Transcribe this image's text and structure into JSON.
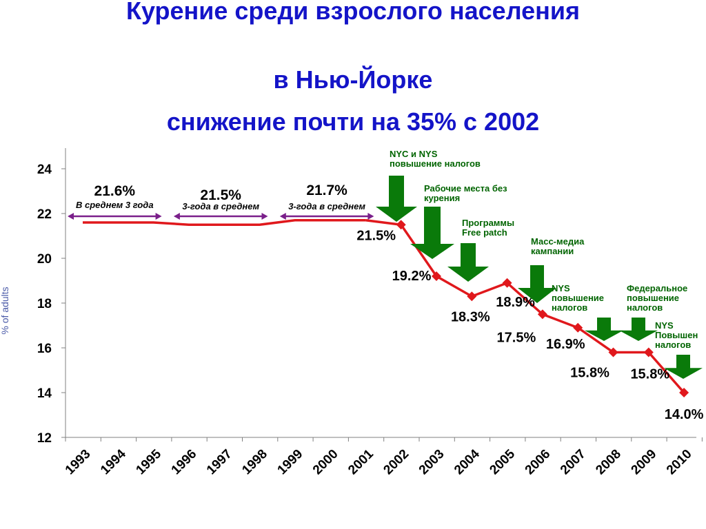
{
  "title_lines": [
    "Курение среди взрослого населения",
    "в Нью-Йорке",
    "снижение почти на 35% с 2002"
  ],
  "colors": {
    "title": "#1414c8",
    "line": "#e0181c",
    "marker": "#e0181c",
    "annotation": "#006400",
    "arrow": "#0a7a0a",
    "average_arrow": "#7a1f8a",
    "axis_label": "#4a5aa8"
  },
  "chart_data": {
    "type": "line",
    "title": "",
    "xlabel": "",
    "ylabel": "% of adults",
    "ylim": [
      12,
      24
    ],
    "y_ticks": [
      12,
      14,
      16,
      18,
      20,
      22,
      24
    ],
    "categories": [
      "1993",
      "1994",
      "1995",
      "1996",
      "1997",
      "1998",
      "1999",
      "2000",
      "2001",
      "2002",
      "2003",
      "2004",
      "2005",
      "2006",
      "2007",
      "2008",
      "2009",
      "2010"
    ],
    "average_line": {
      "x": [
        "1993",
        "1995",
        "1996",
        "1998",
        "1999",
        "2001"
      ],
      "values": [
        21.6,
        21.6,
        21.5,
        21.5,
        21.7,
        21.7
      ]
    },
    "averages": [
      {
        "value_label": "21.6%",
        "period_label": "В среднем 3 года",
        "from": "1993",
        "to": "1995"
      },
      {
        "value_label": "21.5%",
        "period_label": "3-года в среднем",
        "from": "1996",
        "to": "1998"
      },
      {
        "value_label": "21.7%",
        "period_label": "3-года в среднем",
        "from": "1999",
        "to": "2001"
      }
    ],
    "series": [
      {
        "x": [
          "2002",
          "2003",
          "2004",
          "2005",
          "2006",
          "2007",
          "2008",
          "2009",
          "2010"
        ],
        "values": [
          21.5,
          19.2,
          18.3,
          18.9,
          17.5,
          16.9,
          15.8,
          15.8,
          14.0
        ],
        "labels": [
          "21.5%",
          "19.2%",
          "18.3%",
          "18.9%",
          "17.5%",
          "16.9%",
          "15.8%",
          "15.8%",
          "14.0%"
        ]
      }
    ],
    "annotations": [
      {
        "x": "2002",
        "lines": [
          "NYC и NYS",
          "повышение налогов"
        ]
      },
      {
        "x": "2003",
        "lines": [
          "Рабочие места без",
          "курения"
        ]
      },
      {
        "x": "2004",
        "lines": [
          "Программы",
          "Free patch"
        ]
      },
      {
        "x": "2006",
        "lines": [
          "Масс-медиа",
          "кампании"
        ]
      },
      {
        "x": "2007",
        "lines": [
          "NYS",
          "повышение",
          "налогов"
        ]
      },
      {
        "x": "2009",
        "lines": [
          "Федеральное",
          "повышение",
          "налогов"
        ]
      },
      {
        "x": "2010",
        "lines": [
          "NYS",
          "Повышен",
          "налогов"
        ]
      }
    ],
    "grid": false,
    "legend": "none"
  }
}
